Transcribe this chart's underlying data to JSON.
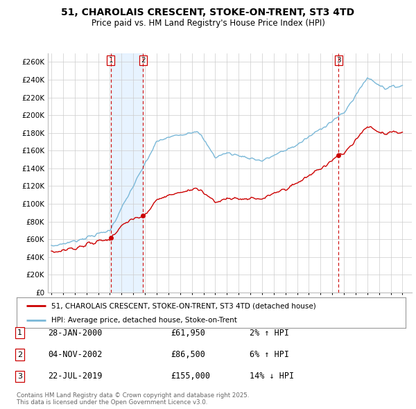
{
  "title": "51, CHAROLAIS CRESCENT, STOKE-ON-TRENT, ST3 4TD",
  "subtitle": "Price paid vs. HM Land Registry's House Price Index (HPI)",
  "ylim": [
    0,
    270000
  ],
  "yticks": [
    0,
    20000,
    40000,
    60000,
    80000,
    100000,
    120000,
    140000,
    160000,
    180000,
    200000,
    220000,
    240000,
    260000
  ],
  "ytick_labels": [
    "£0",
    "£20K",
    "£40K",
    "£60K",
    "£80K",
    "£100K",
    "£120K",
    "£140K",
    "£160K",
    "£180K",
    "£200K",
    "£220K",
    "£240K",
    "£260K"
  ],
  "hpi_color": "#7ab8d8",
  "price_color": "#cc0000",
  "vline_color": "#cc0000",
  "shade_color": "#ddeeff",
  "background_color": "#ffffff",
  "grid_color": "#cccccc",
  "transactions": [
    {
      "num": 1,
      "date": "28-JAN-2000",
      "price": 61950,
      "year": 2000.07
    },
    {
      "num": 2,
      "date": "04-NOV-2002",
      "price": 86500,
      "year": 2002.84
    },
    {
      "num": 3,
      "date": "22-JUL-2019",
      "price": 155000,
      "year": 2019.55
    }
  ],
  "legend_line1": "51, CHAROLAIS CRESCENT, STOKE-ON-TRENT, ST3 4TD (detached house)",
  "legend_line2": "HPI: Average price, detached house, Stoke-on-Trent",
  "footer": "Contains HM Land Registry data © Crown copyright and database right 2025.\nThis data is licensed under the Open Government Licence v3.0.",
  "table_entries": [
    {
      "num": 1,
      "date": "28-JAN-2000",
      "price": "£61,950",
      "pct": "2% ↑ HPI"
    },
    {
      "num": 2,
      "date": "04-NOV-2002",
      "price": "£86,500",
      "pct": "6% ↑ HPI"
    },
    {
      "num": 3,
      "date": "22-JUL-2019",
      "price": "£155,000",
      "pct": "14% ↓ HPI"
    }
  ]
}
